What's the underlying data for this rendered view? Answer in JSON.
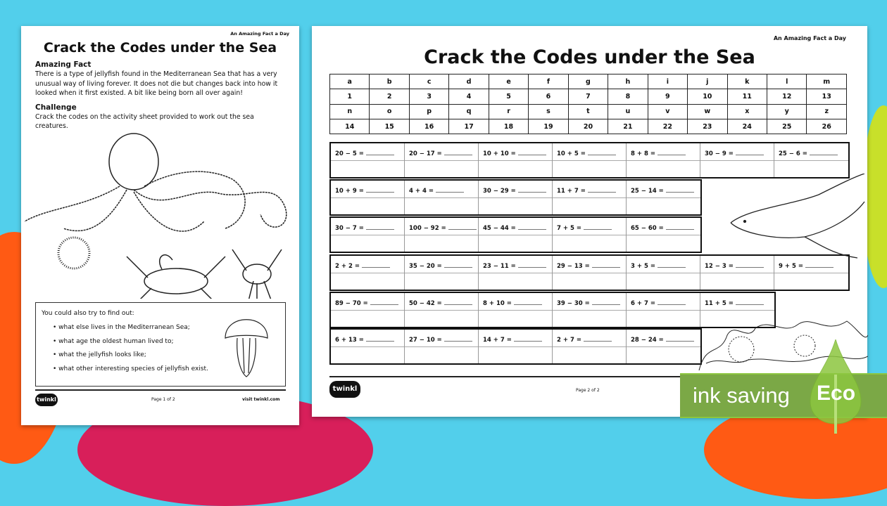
{
  "colors": {
    "background": "#52cfeb",
    "eco_green": "#7ba846",
    "blob_orange": "#ff5a14",
    "blob_pink": "#d81f5a",
    "blob_yellow": "#c8e02a"
  },
  "left_page": {
    "kicker": "An Amazing Fact a Day",
    "title": "Crack the Codes under the Sea",
    "fact_heading": "Amazing Fact",
    "fact_text": "There is a type of jellyfish found in the Mediterranean Sea that has a very unusual way of living forever. It does not die but changes back into how it looked when it first existed. A bit like being born all over again!",
    "challenge_heading": "Challenge",
    "challenge_text": "Crack the codes on the activity sheet provided to work out the sea creatures.",
    "box_intro": "You could also try to find out:",
    "box_items": [
      "what else lives in the Mediterranean Sea;",
      "what age the oldest human lived to;",
      "what the jellyfish looks like;",
      "what other interesting species of jellyfish exist."
    ],
    "footer": {
      "logo": "twinkl",
      "page": "Page 1 of 2",
      "site": "visit twinkl.com"
    }
  },
  "right_page": {
    "kicker": "An Amazing Fact a Day",
    "title": "Crack the Codes under the Sea",
    "code_table": [
      [
        "a",
        "b",
        "c",
        "d",
        "e",
        "f",
        "g",
        "h",
        "i",
        "j",
        "k",
        "l",
        "m"
      ],
      [
        "1",
        "2",
        "3",
        "4",
        "5",
        "6",
        "7",
        "8",
        "9",
        "10",
        "11",
        "12",
        "13"
      ],
      [
        "n",
        "o",
        "p",
        "q",
        "r",
        "s",
        "t",
        "u",
        "v",
        "w",
        "x",
        "y",
        "z"
      ],
      [
        "14",
        "15",
        "16",
        "17",
        "18",
        "19",
        "20",
        "21",
        "22",
        "23",
        "24",
        "25",
        "26"
      ]
    ],
    "equation_rows": [
      [
        "20 − 5 =",
        "20 − 17 =",
        "10 + 10 =",
        "10 + 5 =",
        "8 + 8 =",
        "30 − 9 =",
        "25 − 6 ="
      ],
      [
        "10 + 9 =",
        "4 + 4 =",
        "30 − 29 =",
        "11 + 7 =",
        "25 − 14 ="
      ],
      [
        "30 − 7 =",
        "100 − 92 =",
        "45 − 44 =",
        "7 + 5 =",
        "65 − 60 ="
      ],
      [
        "2 + 2 =",
        "35 − 20 =",
        "23 − 11 =",
        "29 − 13 =",
        "3 + 5 =",
        "12 − 3 =",
        "9 + 5 ="
      ],
      [
        "89 − 70 =",
        "50 − 42 =",
        "8 + 10 =",
        "39 − 30 =",
        "6 + 7 =",
        "11 + 5 ="
      ],
      [
        "6 + 13 =",
        "27 − 10 =",
        "14 + 7 =",
        "2 + 7 =",
        "28 − 24 ="
      ]
    ],
    "footer": {
      "logo": "twinkl",
      "page": "Page 2 of 2"
    }
  },
  "badge": {
    "label": "ink saving",
    "eco": "Eco"
  }
}
